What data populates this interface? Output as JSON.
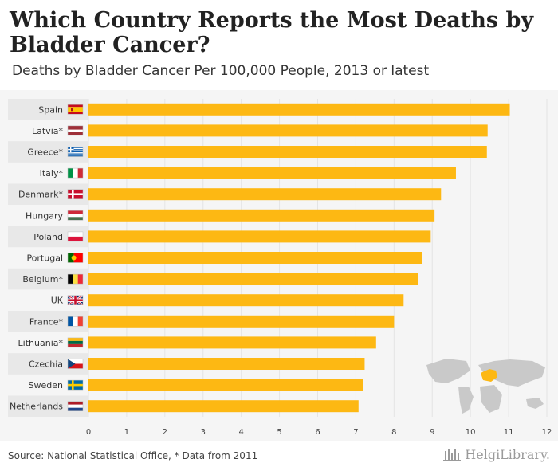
{
  "header": {
    "title": "Which Country Reports the Most Deaths by Bladder Cancer?",
    "subtitle": "Deaths by Bladder Cancer Per 100,000 People, 2013 or latest"
  },
  "footer": {
    "source": "Source: National Statistical Office, * Data from 2011",
    "brand": "HelgiLibrary."
  },
  "colors": {
    "bar": "#FDB813",
    "row_band": "#e8e8e8",
    "grid": "#e4e4e4",
    "map_land": "#c9c9c9",
    "map_highlight": "#FDB813"
  },
  "chart_data": {
    "type": "bar",
    "orientation": "horizontal",
    "title": "Which Country Reports the Most Deaths by Bladder Cancer?",
    "subtitle": "Deaths by Bladder Cancer Per 100,000 People, 2013 or latest",
    "categories": [
      "Spain",
      "Latvia*",
      "Greece*",
      "Italy*",
      "Denmark*",
      "Hungary",
      "Poland",
      "Portugal",
      "Belgium*",
      "UK",
      "France*",
      "Lithuania*",
      "Czechia",
      "Sweden",
      "Netherlands"
    ],
    "flags": [
      "spain-flag-icon",
      "latvia-flag-icon",
      "greece-flag-icon",
      "italy-flag-icon",
      "denmark-flag-icon",
      "hungary-flag-icon",
      "poland-flag-icon",
      "portugal-flag-icon",
      "belgium-flag-icon",
      "uk-flag-icon",
      "france-flag-icon",
      "lithuania-flag-icon",
      "czechia-flag-icon",
      "sweden-flag-icon",
      "netherlands-flag-icon"
    ],
    "values": [
      11.03,
      10.45,
      10.43,
      9.62,
      9.23,
      9.06,
      8.96,
      8.74,
      8.62,
      8.25,
      8.0,
      7.53,
      7.23,
      7.19,
      7.07
    ],
    "xlim": [
      0,
      12
    ],
    "xticks": [
      "0",
      "1",
      "2",
      "3",
      "4",
      "5",
      "6",
      "7",
      "8",
      "9",
      "10",
      "11",
      "12"
    ],
    "xlabel": "",
    "ylabel": "",
    "grid": true
  }
}
